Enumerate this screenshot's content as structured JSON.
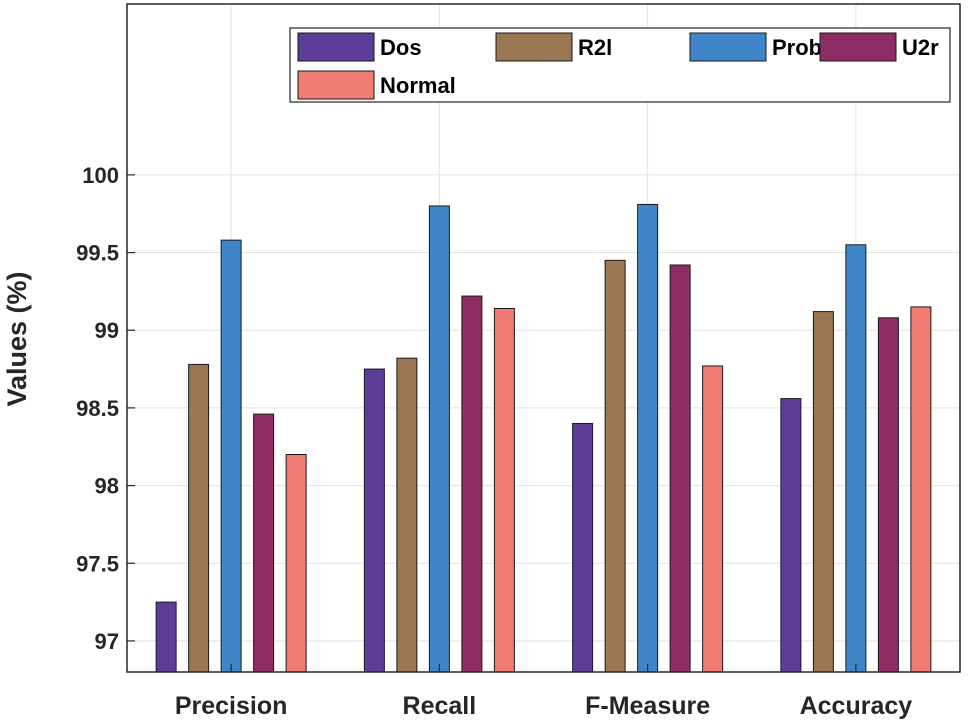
{
  "chart_data": {
    "type": "bar",
    "title": "",
    "xlabel": "",
    "ylabel": "Values (%)",
    "categories": [
      "Precision",
      "Recall",
      "F-Measure",
      "Accuracy"
    ],
    "series": [
      {
        "name": "Dos",
        "color": "#5e3c99",
        "values": [
          97.25,
          98.75,
          98.4,
          98.56
        ]
      },
      {
        "name": "R2l",
        "color": "#9b7653",
        "values": [
          98.78,
          98.82,
          99.45,
          99.12
        ]
      },
      {
        "name": "Probe",
        "color": "#3f86c9",
        "values": [
          99.58,
          99.8,
          99.81,
          99.55
        ]
      },
      {
        "name": "U2r",
        "color": "#8e2c64",
        "values": [
          98.46,
          99.22,
          99.42,
          99.08
        ]
      },
      {
        "name": "Normal",
        "color": "#f07b72",
        "values": [
          98.2,
          99.14,
          98.77,
          99.15
        ]
      }
    ],
    "ylim": [
      96.8,
      101.1
    ],
    "yticks": [
      "97",
      "97.5",
      "98",
      "98.5",
      "99",
      "99.5",
      "100"
    ],
    "grid": true,
    "legend_position": "top-right"
  }
}
